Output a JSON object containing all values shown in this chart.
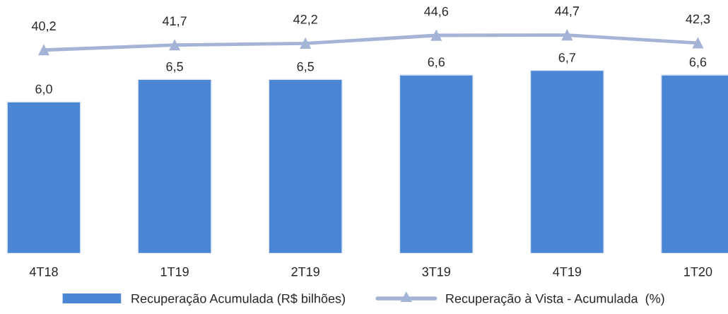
{
  "chart_data": [
    {
      "type": "bar",
      "categories": [
        "4T18",
        "1T19",
        "2T19",
        "3T19",
        "4T19",
        "1T20"
      ],
      "tick_labels": "x",
      "grid": false,
      "legend": "bottom",
      "series": [
        {
          "name": "Recuperação Acumulada (R$ bilhões)",
          "color": "#4a86d4",
          "values": [
            6.0,
            6.5,
            6.5,
            6.6,
            6.7,
            6.6
          ],
          "value_labels": [
            "6,0",
            "6,5",
            "6,5",
            "6,6",
            "6,7",
            "6,6"
          ]
        }
      ]
    },
    {
      "type": "line",
      "categories": [
        null,
        null,
        null,
        null,
        null,
        null
      ],
      "tick_labels": false,
      "grid": false,
      "legend": "bottom",
      "marker": "triangle",
      "series": [
        {
          "name": "Recuperação à Vista - Acumulada  (%)",
          "color": "#a5b4d6",
          "values": [
            40.2,
            41.7,
            42.2,
            44.6,
            44.7,
            42.3
          ],
          "value_labels": [
            "40,2",
            "41,7",
            "42,2",
            "44,6",
            "44,7",
            "42,3"
          ]
        }
      ]
    }
  ]
}
